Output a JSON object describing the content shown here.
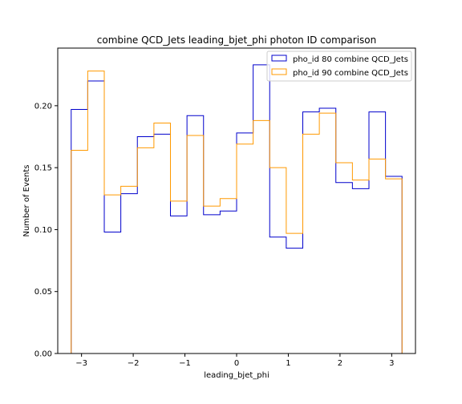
{
  "chart_data": {
    "type": "step-histogram",
    "title": "combine QCD_Jets leading_bjet_phi photon ID comparison",
    "xlabel": "leading_bjet_phi",
    "ylabel": "Number of Events",
    "xlim": [
      -3.46,
      3.46
    ],
    "ylim": [
      0,
      0.2465
    ],
    "xticks": [
      -3,
      -2,
      -1,
      0,
      1,
      2,
      3
    ],
    "yticks": [
      0.0,
      0.05,
      0.1,
      0.15,
      0.2
    ],
    "ytick_labels": [
      "0.00",
      "0.05",
      "0.10",
      "0.15",
      "0.20"
    ],
    "xtick_labels": [
      "−3",
      "−2",
      "−1",
      "0",
      "1",
      "2",
      "3"
    ],
    "bin_edges": [
      -3.2,
      -2.88,
      -2.56,
      -2.24,
      -1.92,
      -1.6,
      -1.28,
      -0.96,
      -0.64,
      -0.32,
      0.0,
      0.32,
      0.64,
      0.96,
      1.28,
      1.6,
      1.92,
      2.24,
      2.56,
      2.88,
      3.2
    ],
    "series": [
      {
        "name": "pho_id 80 combine QCD_Jets",
        "color": "#0000cc",
        "values": [
          0.197,
          0.22,
          0.098,
          0.129,
          0.175,
          0.177,
          0.111,
          0.192,
          0.112,
          0.115,
          0.178,
          0.233,
          0.094,
          0.085,
          0.195,
          0.198,
          0.138,
          0.133,
          0.195,
          0.143
        ]
      },
      {
        "name": "pho_id 90 combine QCD_Jets",
        "color": "#ff9900",
        "values": [
          0.164,
          0.228,
          0.128,
          0.135,
          0.166,
          0.186,
          0.123,
          0.176,
          0.119,
          0.125,
          0.169,
          0.188,
          0.15,
          0.097,
          0.177,
          0.194,
          0.154,
          0.14,
          0.157,
          0.141
        ]
      }
    ],
    "legend_position": "top-right",
    "grid": false
  }
}
